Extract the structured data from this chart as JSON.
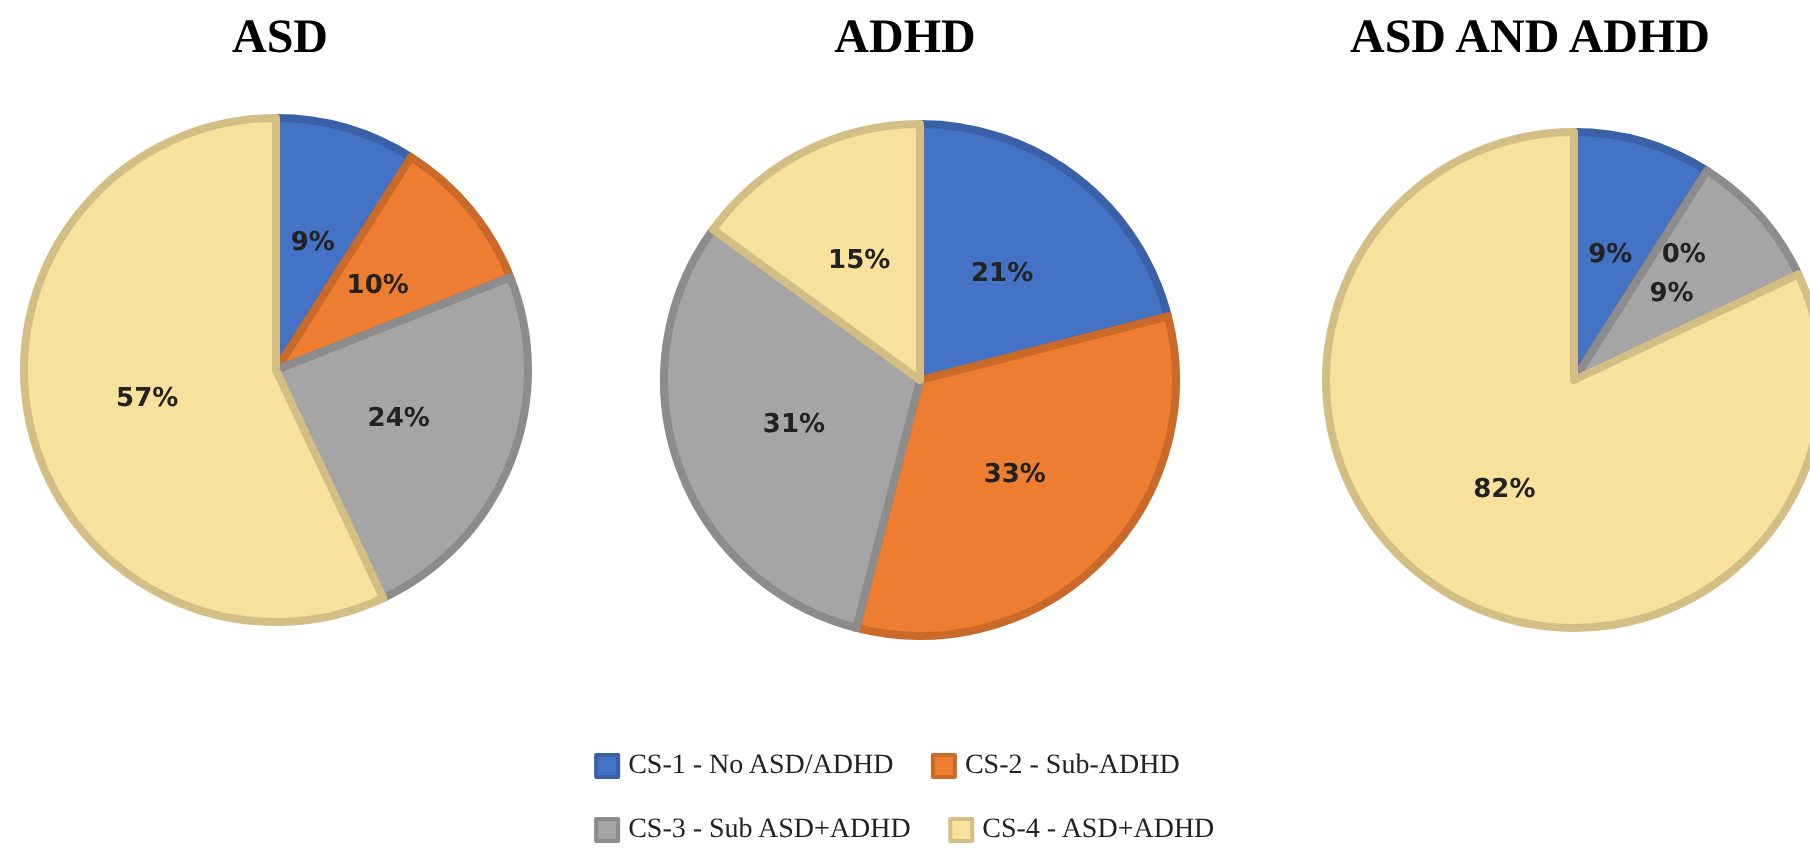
{
  "chart_data": [
    {
      "type": "pie",
      "title": "ASD",
      "categories": [
        null,
        null,
        null,
        null
      ],
      "values": [
        9,
        10,
        24,
        57
      ],
      "colors": [
        "#4472c4",
        "#ed7d31",
        "#a5a5a5",
        "#f8e19c"
      ],
      "value_labels": [
        "9%",
        "10%",
        "24%",
        "57%"
      ]
    },
    {
      "type": "pie",
      "title": "ADHD",
      "categories": [
        "CS-1 - No ASD/ADHD",
        "CS-2 - Sub-ADHD",
        "CS-3 - Sub ASD+ADHD",
        "CS-4 - ASD+ADHD"
      ],
      "values": [
        21,
        33,
        31,
        15
      ],
      "colors": [
        "#4472c4",
        "#ed7d31",
        "#a5a5a5",
        "#f8e19c"
      ],
      "value_labels": [
        "21%",
        "33%",
        "31%",
        "15%"
      ],
      "legend": "bottom"
    },
    {
      "type": "pie",
      "title": "ASD AND ADHD",
      "categories": [
        null,
        null,
        null,
        null
      ],
      "values": [
        9,
        0,
        9,
        82
      ],
      "colors": [
        "#4472c4",
        "#ed7d31",
        "#a5a5a5",
        "#f8e19c"
      ],
      "value_labels": [
        "9%",
        "0%",
        "9%",
        "82%"
      ]
    }
  ]
}
